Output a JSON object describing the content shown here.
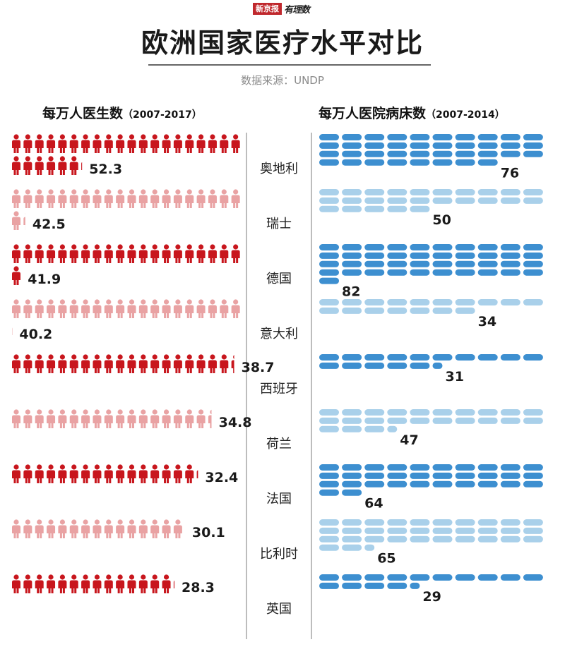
{
  "brand": {
    "left": "新京报",
    "right": "有理数"
  },
  "title": "欧洲国家医疗水平对比",
  "source": "数据来源：UNDP",
  "colors": {
    "doctor_dark": "#c8161d",
    "doctor_light": "#e9a2a3",
    "bed_dark": "#3d8fd0",
    "bed_light": "#a9d0ea"
  },
  "chart_data": [
    {
      "type": "bar",
      "title": "每万人医生数",
      "title_years": "（2007-2017）",
      "unit_icon": "doctor-icon",
      "categories": [
        "奥地利",
        "瑞士",
        "德国",
        "意大利",
        "西班牙",
        "荷兰",
        "法国",
        "比利时",
        "英国"
      ],
      "values": [
        52.3,
        42.5,
        41.9,
        40.2,
        38.7,
        34.8,
        32.4,
        30.1,
        28.3
      ],
      "value_labels": [
        "52.3",
        "42.5",
        "41.9",
        "40.2",
        "38.7",
        "34.8",
        "32.4",
        "30.1",
        "28.3"
      ],
      "icons_per_row": 20
    },
    {
      "type": "bar",
      "title": "每万人医院病床数",
      "title_years": "（2007-2014）",
      "unit_icon": "bed-icon",
      "categories": [
        "奥地利",
        "瑞士",
        "德国",
        "意大利",
        "西班牙",
        "荷兰",
        "法国",
        "比利时",
        "英国"
      ],
      "values": [
        76,
        50,
        82,
        34,
        31,
        47,
        64,
        65,
        29
      ],
      "value_labels": [
        "76",
        "50",
        "82",
        "34",
        "31",
        "47",
        "64",
        "65",
        "29"
      ],
      "icons_per_row": 10
    }
  ]
}
